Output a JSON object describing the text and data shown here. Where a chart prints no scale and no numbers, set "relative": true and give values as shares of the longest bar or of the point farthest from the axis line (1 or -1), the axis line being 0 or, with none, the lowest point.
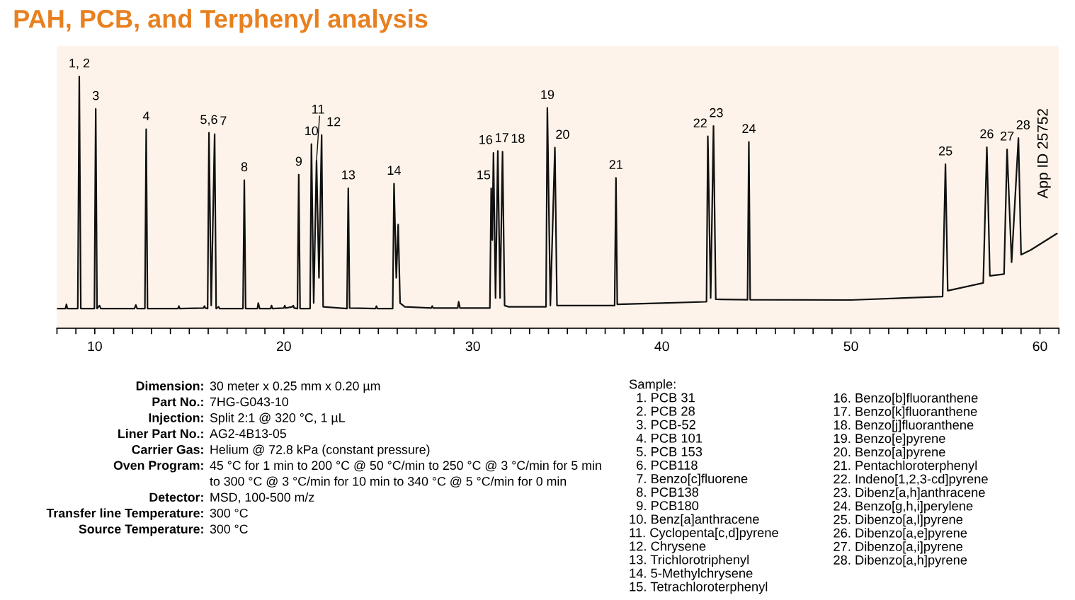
{
  "chart_data": {
    "type": "line",
    "title": "PAH, PCB, and Terphenyl analysis",
    "relative": true,
    "series": [
      {
        "color": "#111111",
        "x": [
          8.0,
          8.45,
          8.5,
          8.55,
          9.1,
          9.18,
          9.26,
          9.98,
          10.05,
          10.12,
          10.25,
          10.32,
          12.1,
          12.17,
          12.24,
          12.65,
          12.72,
          12.79,
          14.4,
          14.45,
          14.5,
          15.75,
          15.8,
          15.85,
          15.97,
          16.04,
          16.16,
          16.34,
          16.42,
          16.55,
          16.6,
          17.84,
          17.91,
          17.98,
          18.6,
          18.65,
          18.72,
          19.3,
          19.35,
          19.4,
          20.0,
          20.05,
          20.1,
          20.45,
          20.5,
          20.55,
          20.72,
          20.79,
          20.86,
          21.39,
          21.46,
          21.58,
          21.73,
          21.86,
          22.0,
          22.08,
          23.34,
          23.41,
          23.48,
          24.85,
          24.9,
          24.95,
          25.76,
          25.83,
          25.95,
          26.05,
          26.15,
          26.4,
          27.8,
          27.85,
          27.9,
          29.2,
          29.25,
          29.32,
          30.9,
          30.97,
          31.03,
          31.09,
          31.2,
          31.32,
          31.44,
          31.57,
          31.68,
          31.9,
          33.87,
          33.94,
          34.1,
          34.34,
          34.45,
          37.5,
          37.57,
          37.64,
          40.0,
          42.36,
          42.43,
          42.58,
          42.73,
          42.85,
          44.53,
          44.6,
          44.67,
          50.0,
          54.85,
          55.0,
          55.12,
          57.0,
          57.19,
          57.35,
          58.1,
          58.26,
          58.5,
          58.86,
          59.0,
          59.5,
          60.9
        ],
        "values": [
          0.078,
          0.078,
          0.095,
          0.078,
          0.078,
          1.0,
          0.078,
          0.078,
          0.871,
          0.078,
          0.09,
          0.078,
          0.078,
          0.092,
          0.078,
          0.078,
          0.79,
          0.078,
          0.078,
          0.088,
          0.078,
          0.08,
          0.088,
          0.08,
          0.078,
          0.776,
          0.09,
          0.771,
          0.078,
          0.085,
          0.078,
          0.078,
          0.588,
          0.078,
          0.078,
          0.1,
          0.078,
          0.078,
          0.09,
          0.078,
          0.08,
          0.09,
          0.08,
          0.085,
          0.09,
          0.08,
          0.078,
          0.61,
          0.078,
          0.078,
          0.731,
          0.1,
          0.665,
          0.2,
          0.767,
          0.085,
          0.078,
          0.556,
          0.08,
          0.078,
          0.088,
          0.078,
          0.078,
          0.574,
          0.2,
          0.412,
          0.1,
          0.085,
          0.08,
          0.088,
          0.08,
          0.08,
          0.105,
          0.08,
          0.08,
          0.556,
          0.35,
          0.696,
          0.12,
          0.704,
          0.12,
          0.701,
          0.09,
          0.085,
          0.085,
          0.875,
          0.09,
          0.717,
          0.09,
          0.09,
          0.597,
          0.095,
          0.1,
          0.105,
          0.762,
          0.12,
          0.803,
          0.115,
          0.113,
          0.74,
          0.113,
          0.112,
          0.126,
          0.651,
          0.149,
          0.18,
          0.719,
          0.208,
          0.215,
          0.71,
          0.262,
          0.755,
          0.292,
          0.31,
          0.376
        ]
      }
    ],
    "xlim": [
      8,
      61
    ],
    "xticks": [
      {
        "value": 8,
        "label": null
      },
      {
        "value": 9,
        "label": null
      },
      10,
      {
        "value": 11,
        "label": null
      },
      {
        "value": 12,
        "label": null
      },
      {
        "value": 13,
        "label": null
      },
      {
        "value": 14,
        "label": null
      },
      {
        "value": 15,
        "label": null
      },
      {
        "value": 16,
        "label": null
      },
      {
        "value": 17,
        "label": null
      },
      {
        "value": 18,
        "label": null
      },
      {
        "value": 19,
        "label": null
      },
      20,
      {
        "value": 21,
        "label": null
      },
      {
        "value": 22,
        "label": null
      },
      {
        "value": 23,
        "label": null
      },
      {
        "value": 24,
        "label": null
      },
      {
        "value": 25,
        "label": null
      },
      {
        "value": 26,
        "label": null
      },
      {
        "value": 27,
        "label": null
      },
      {
        "value": 28,
        "label": null
      },
      {
        "value": 29,
        "label": null
      },
      30,
      {
        "value": 31,
        "label": null
      },
      {
        "value": 32,
        "label": null
      },
      {
        "value": 33,
        "label": null
      },
      {
        "value": 34,
        "label": null
      },
      {
        "value": 35,
        "label": null
      },
      {
        "value": 36,
        "label": null
      },
      {
        "value": 37,
        "label": null
      },
      {
        "value": 38,
        "label": null
      },
      {
        "value": 39,
        "label": null
      },
      40,
      {
        "value": 41,
        "label": null
      },
      {
        "value": 42,
        "label": null
      },
      {
        "value": 43,
        "label": null
      },
      {
        "value": 44,
        "label": null
      },
      {
        "value": 45,
        "label": null
      },
      {
        "value": 46,
        "label": null
      },
      {
        "value": 47,
        "label": null
      },
      {
        "value": 48,
        "label": null
      },
      {
        "value": 49,
        "label": null
      },
      50,
      {
        "value": 51,
        "label": null
      },
      {
        "value": 52,
        "label": null
      },
      {
        "value": 53,
        "label": null
      },
      {
        "value": 54,
        "label": null
      },
      {
        "value": 55,
        "label": null
      },
      {
        "value": 56,
        "label": null
      },
      {
        "value": 57,
        "label": null
      },
      {
        "value": 58,
        "label": null
      },
      {
        "value": 59,
        "label": null
      },
      60,
      {
        "value": 61,
        "label": null
      }
    ],
    "tick_labels": "x",
    "grid": false,
    "annotations": [
      "Dimension: 30 meter x 0.25 mm x 0.20 µm\nPart No.: 7HG-G043-10\nInjection: Split 2:1 @ 320 °C, 1 µL\nLiner Part No.: AG2-4B13-05\nCarrier Gas: Helium @ 72.8 kPa (constant pressure)\nOven Program: 45 °C for 1 min to 200 °C @ 50 °C/min to 250 °C @ 3 °C/min for 5 min\nto 300 °C @ 3 °C/min for 10 min to 340 °C @ 5 °C/min for 0 min\nDetector: MSD, 100-500 m/z\nTransfer line Temperature: 300 °C\nSource Temperature: 300 °C",
      "Sample:\n  1. PCB 31\n  2. PCB 28\n  3. PCB-52\n  4. PCB 101\n  5. PCB 153\n  6. PCB118\n  7. Benzo[c]fluorene\n  8. PCB138\n  9. PCB180\n10. Benz[a]anthracene\n11. Cyclopenta[c,d]pyrene\n12. Chrysene\n13. Trichlorotriphenyl\n14. 5-Methylchrysene\n15. Tetrachloroterphenyl",
      "16. Benzo[b]fluoranthene\n17. Benzo[k]fluoranthene\n18. Benzo[j]fluoranthene\n19. Benzo[e]pyrene\n20. Benzo[a]pyrene\n21. Pentachloroterphenyl\n22. Indeno[1,2,3-cd]pyrene\n23. Dibenz[a,h]anthracene\n24. Benzo[g,h,i]perylene\n25. Dibenzo[a,l]pyrene\n26. Dibenzo[a,e]pyrene\n27. Dibenzo[a,i]pyrene\n28. Dibenzo[a,h]pyrene",
      "App ID 25752",
      {
        "text": "1, 2",
        "x": 9.18,
        "y": 1.0
      },
      {
        "text": "3",
        "x": 10.05,
        "y": 0.871
      },
      {
        "text": "4",
        "x": 12.72,
        "y": 0.79
      },
      {
        "text": "5,6",
        "x": 16.04,
        "y": 0.776
      },
      {
        "text": "7",
        "x": 16.34,
        "y": 0.771
      },
      {
        "text": "8",
        "x": 17.91,
        "y": 0.588
      },
      {
        "text": "9",
        "x": 20.79,
        "y": 0.61
      },
      {
        "text": "10",
        "x": 21.46,
        "y": 0.731
      },
      {
        "text": "11",
        "x": 21.73,
        "y": 0.665
      },
      {
        "text": "12",
        "x": 22.0,
        "y": 0.767
      },
      {
        "text": "13",
        "x": 23.41,
        "y": 0.556
      },
      {
        "text": "14",
        "x": 25.83,
        "y": 0.574
      },
      {
        "text": "15",
        "x": 30.97,
        "y": 0.556
      },
      {
        "text": "16",
        "x": 31.09,
        "y": 0.696
      },
      {
        "text": "17",
        "x": 31.32,
        "y": 0.704
      },
      {
        "text": "18",
        "x": 31.57,
        "y": 0.701
      },
      {
        "text": "19",
        "x": 33.94,
        "y": 0.875
      },
      {
        "text": "20",
        "x": 34.34,
        "y": 0.717
      },
      {
        "text": "21",
        "x": 37.57,
        "y": 0.597
      },
      {
        "text": "22",
        "x": 42.43,
        "y": 0.762
      },
      {
        "text": "23",
        "x": 42.73,
        "y": 0.803
      },
      {
        "text": "24",
        "x": 44.6,
        "y": 0.74
      },
      {
        "text": "25",
        "x": 55.0,
        "y": 0.651
      },
      {
        "text": "26",
        "x": 57.19,
        "y": 0.719
      },
      {
        "text": "27",
        "x": 58.26,
        "y": 0.71
      },
      {
        "text": "28",
        "x": 58.86,
        "y": 0.755
      }
    ]
  }
}
